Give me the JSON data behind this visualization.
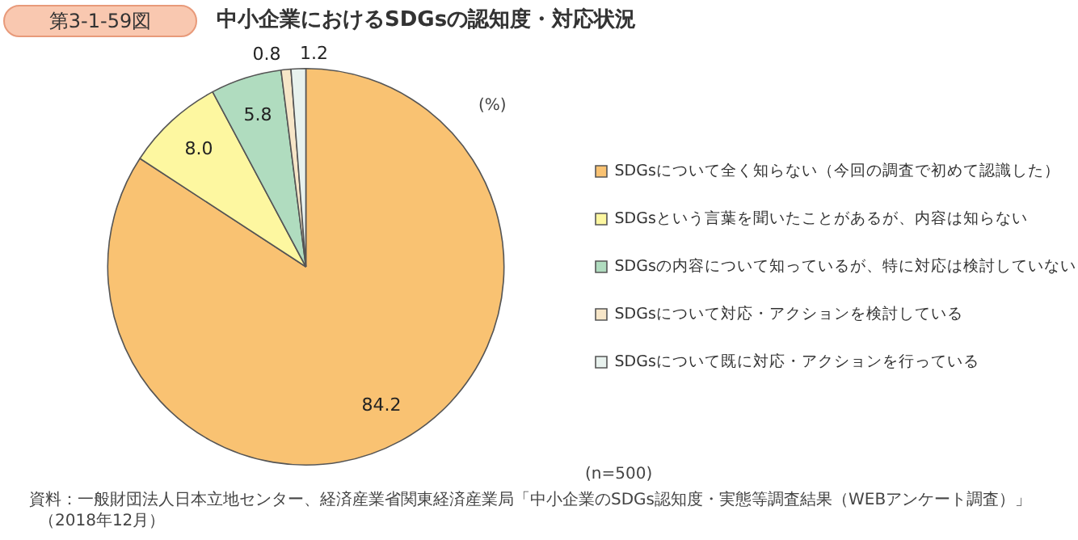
{
  "chart_data": {
    "type": "pie",
    "title": "中小企業におけるSDGsの認知度・対応状況",
    "categories": [
      "SDGsについて全く知らない（今回の調査で初めて認識した）",
      "SDGsという言葉を聞いたことがあるが、内容は知らない",
      "SDGsの内容について知っているが、特に対応は検討していない",
      "SDGsについて対応・アクションを検討している",
      "SDGsについて既に対応・アクションを行っている"
    ],
    "values": [
      84.2,
      8.0,
      5.8,
      0.8,
      1.2
    ],
    "colors": [
      "#f9c272",
      "#fdf7a0",
      "#b0dcbf",
      "#f7e6c8",
      "#e8f2ee"
    ],
    "value_labels": [
      "84.2",
      "8.0",
      "5.8",
      "0.8",
      "1.2"
    ],
    "legend": "right",
    "annotations": [
      "第3-1-59図",
      "(%)",
      "(n=500)",
      "資料：一般財団法人日本立地センター、経済産業省関東経済産業局「中小企業のSDGs認知度・実態等調査結果（WEBアンケート調査）」",
      "（2018年12月）"
    ]
  }
}
